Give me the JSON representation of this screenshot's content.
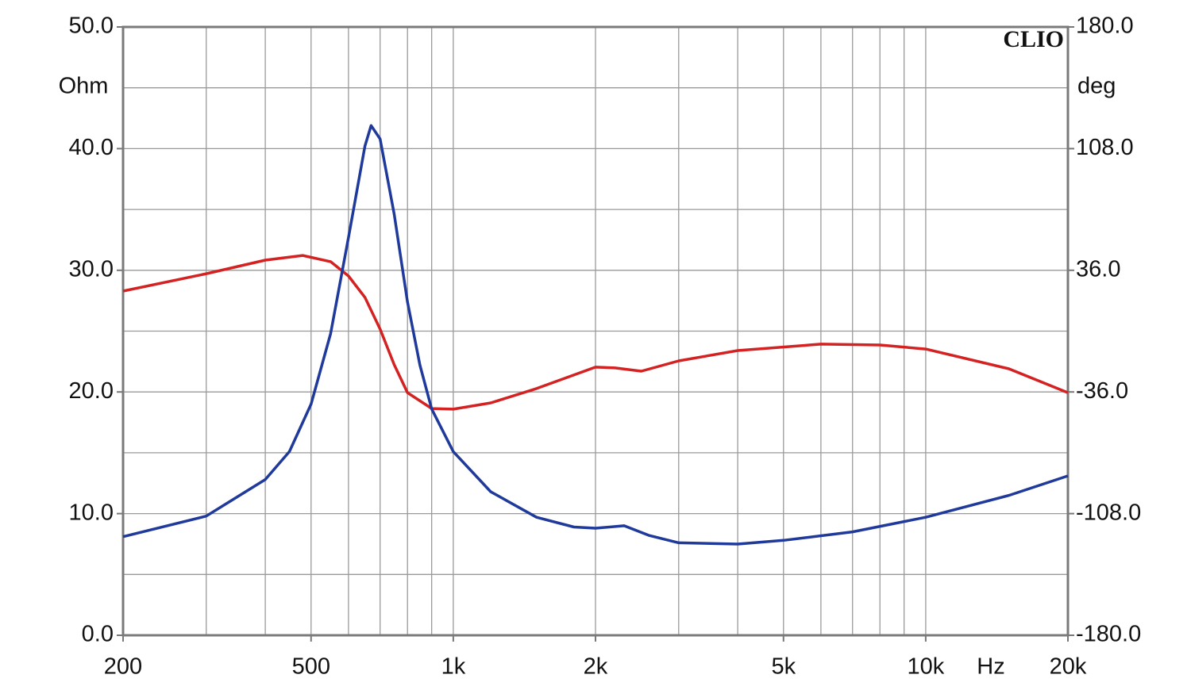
{
  "chart_data": {
    "type": "line",
    "annotation": "CLIO",
    "xlabel": "Hz",
    "ylabel": "Ohm",
    "y2label": "deg",
    "xscale": "log",
    "grid": true,
    "xlim": [
      200,
      20000
    ],
    "xticks": [
      200,
      500,
      {
        "value": 1000,
        "label": "1k"
      },
      {
        "value": 2000,
        "label": "2k"
      },
      {
        "value": 5000,
        "label": "5k"
      },
      {
        "value": 10000,
        "label": "10k"
      },
      {
        "value": 20000,
        "label": "20k"
      }
    ],
    "xgrid_minor": [
      300,
      400,
      600,
      700,
      800,
      900,
      3000,
      4000,
      6000,
      7000,
      8000,
      9000
    ],
    "ylim": [
      0,
      50
    ],
    "yticks": [
      {
        "value": 0,
        "label": "0.0"
      },
      {
        "value": 10,
        "label": "10.0"
      },
      {
        "value": 20,
        "label": "20.0"
      },
      {
        "value": 30,
        "label": "30.0"
      },
      {
        "value": 40,
        "label": "40.0"
      },
      {
        "value": 50,
        "label": "50.0"
      }
    ],
    "ygrid_minor": [
      5,
      15,
      25,
      35,
      45
    ],
    "y2lim": [
      -180,
      180
    ],
    "y2ticks": [
      {
        "value": -180,
        "label": "-180.0"
      },
      {
        "value": -108,
        "label": "-108.0"
      },
      {
        "value": -36,
        "label": "-36.0"
      },
      {
        "value": 36,
        "label": "36.0"
      },
      {
        "value": 108,
        "label": "108.0"
      },
      {
        "value": 180,
        "label": "180.0"
      }
    ],
    "series": [
      {
        "color": "#1f3a9a",
        "x": [
          200,
          300,
          400,
          450,
          500,
          550,
          600,
          650,
          670,
          700,
          750,
          800,
          850,
          900,
          1000,
          1200,
          1500,
          1800,
          2000,
          2300,
          2600,
          3000,
          4000,
          5000,
          7000,
          10000,
          15000,
          20000
        ],
        "values": [
          8.1,
          9.8,
          12.8,
          15.1,
          19.0,
          24.8,
          32.7,
          40.2,
          41.9,
          40.8,
          34.6,
          27.4,
          22.2,
          18.6,
          15.1,
          11.8,
          9.7,
          8.9,
          8.8,
          9.0,
          8.2,
          7.6,
          7.5,
          7.8,
          8.5,
          9.7,
          11.5,
          13.1
        ]
      },
      {
        "color": "#d42222",
        "axis": "y2",
        "x": [
          200,
          300,
          400,
          480,
          550,
          600,
          650,
          700,
          750,
          800,
          900,
          1000,
          1200,
          1500,
          2000,
          2200,
          2500,
          3000,
          4000,
          6000,
          8000,
          10000,
          15000,
          20000
        ],
        "values": [
          23.7,
          34.0,
          42.0,
          44.8,
          41.1,
          32.6,
          20.0,
          1.2,
          -19.9,
          -36.4,
          -45.8,
          -46.2,
          -42.5,
          -34.0,
          -21.3,
          -21.8,
          -23.7,
          -17.6,
          -11.5,
          -7.7,
          -8.2,
          -10.6,
          -22.3,
          -36.4
        ]
      }
    ]
  }
}
